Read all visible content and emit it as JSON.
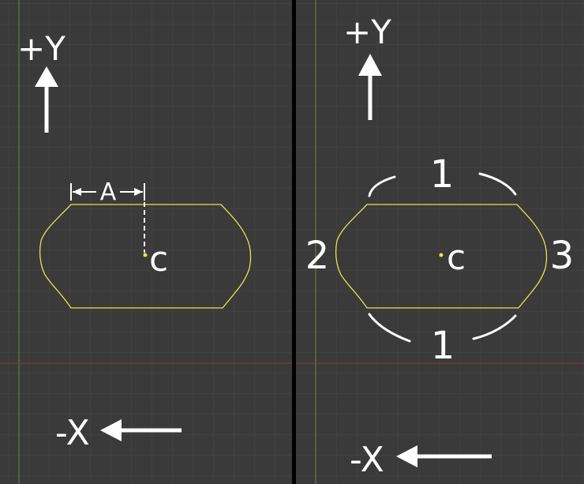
{
  "left_panel": {
    "axis_y_label": "+Y",
    "axis_x_label": "-X",
    "dimension_label": "A",
    "center_label": "c"
  },
  "right_panel": {
    "axis_y_label": "+Y",
    "axis_x_label": "-X",
    "center_label": "c",
    "edge_top_label": "1",
    "edge_bottom_label": "1",
    "edge_left_label": "2",
    "edge_right_label": "3"
  },
  "colors": {
    "background": "#3a3a3a",
    "grid": "#464646",
    "axis_green": "#6b8a3a",
    "axis_red": "#8a3a3a",
    "shape_outline": "#e8e24a",
    "divider": "#000000",
    "annotation": "#ffffff"
  }
}
